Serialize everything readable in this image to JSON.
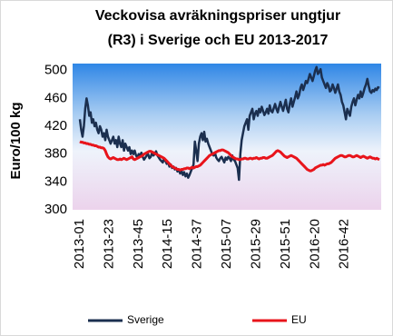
{
  "chart_data": {
    "type": "line",
    "title": [
      "Veckovisa avräkningspriser ungtjur",
      "(R3) i Sverige och EU 2013-2017"
    ],
    "y_label": "Euro/100 kg",
    "ylim": [
      300,
      510
    ],
    "yticks": [
      300,
      340,
      380,
      420,
      460,
      500
    ],
    "grid": false,
    "legend": "bottom",
    "categories": [
      "2013-01",
      null,
      null,
      null,
      null,
      null,
      null,
      null,
      null,
      null,
      null,
      null,
      null,
      null,
      null,
      null,
      null,
      null,
      null,
      null,
      null,
      null,
      "2013-23",
      null,
      null,
      null,
      null,
      null,
      null,
      null,
      null,
      null,
      null,
      null,
      null,
      null,
      null,
      null,
      null,
      null,
      null,
      null,
      null,
      null,
      "2013-45",
      null,
      null,
      null,
      null,
      null,
      null,
      null,
      null,
      null,
      null,
      null,
      null,
      null,
      null,
      null,
      null,
      null,
      null,
      null,
      null,
      null,
      "2014-15",
      null,
      null,
      null,
      null,
      null,
      null,
      null,
      null,
      null,
      null,
      null,
      null,
      null,
      null,
      null,
      null,
      null,
      null,
      null,
      null,
      null,
      "2014-37",
      null,
      null,
      null,
      null,
      null,
      null,
      null,
      null,
      null,
      null,
      null,
      null,
      null,
      null,
      null,
      null,
      null,
      null,
      null,
      null,
      null,
      "2015-07",
      null,
      null,
      null,
      null,
      null,
      null,
      null,
      null,
      null,
      null,
      null,
      null,
      null,
      null,
      null,
      null,
      null,
      null,
      null,
      null,
      null,
      "2015-29",
      null,
      null,
      null,
      null,
      null,
      null,
      null,
      null,
      null,
      null,
      null,
      null,
      null,
      null,
      null,
      null,
      null,
      null,
      null,
      null,
      null,
      "2015-51",
      null,
      null,
      null,
      null,
      null,
      null,
      null,
      null,
      null,
      null,
      null,
      null,
      null,
      null,
      null,
      null,
      null,
      null,
      null,
      null,
      null,
      "2016-20",
      null,
      null,
      null,
      null,
      null,
      null,
      null,
      null,
      null,
      null,
      null,
      null,
      null,
      null,
      null,
      null,
      null,
      null,
      null,
      null,
      null,
      "2016-42",
      null,
      null,
      null,
      null,
      null,
      null,
      null,
      null,
      null,
      null,
      null,
      null,
      null,
      null,
      null,
      null,
      null,
      null,
      null,
      null,
      null,
      null,
      null,
      null,
      null,
      null
    ],
    "series": [
      {
        "name": "Sverige",
        "color": "#1b2f4f",
        "values": [
          430,
          415,
          405,
          420,
          445,
          460,
          450,
          435,
          440,
          425,
          430,
          420,
          425,
          415,
          410,
          420,
          415,
          405,
          410,
          400,
          415,
          405,
          400,
          395,
          400,
          405,
          395,
          400,
          390,
          405,
          395,
          390,
          400,
          385,
          395,
          390,
          385,
          390,
          380,
          385,
          380,
          385,
          378,
          375,
          380,
          378,
          382,
          376,
          372,
          375,
          378,
          380,
          374,
          376,
          382,
          378,
          380,
          384,
          378,
          375,
          372,
          370,
          368,
          374,
          370,
          366,
          368,
          362,
          365,
          360,
          362,
          358,
          360,
          355,
          358,
          352,
          356,
          350,
          354,
          348,
          352,
          346,
          350,
          355,
          360,
          365,
          398,
          385,
          370,
          395,
          405,
          410,
          400,
          412,
          398,
          402,
          395,
          390,
          385,
          380,
          378,
          382,
          375,
          372,
          370,
          374,
          376,
          372,
          368,
          375,
          372,
          376,
          374,
          370,
          378,
          372,
          370,
          365,
          360,
          343,
          380,
          400,
          410,
          420,
          425,
          430,
          415,
          435,
          440,
          445,
          430,
          438,
          442,
          435,
          445,
          440,
          448,
          442,
          436,
          440,
          445,
          438,
          450,
          442,
          440,
          446,
          452,
          445,
          440,
          448,
          455,
          448,
          442,
          450,
          458,
          445,
          440,
          452,
          460,
          448,
          455,
          462,
          470,
          460,
          465,
          475,
          480,
          472,
          478,
          485,
          482,
          488,
          495,
          490,
          485,
          492,
          500,
          505,
          495,
          498,
          502,
          490,
          485,
          480,
          475,
          482,
          478,
          470,
          472,
          480,
          475,
          468,
          474,
          480,
          470,
          465,
          455,
          450,
          440,
          430,
          445,
          440,
          435,
          448,
          455,
          460,
          450,
          458,
          465,
          460,
          470,
          462,
          468,
          475,
          480,
          488,
          478,
          470,
          468,
          472,
          470,
          474,
          472,
          476,
          475
        ]
      },
      {
        "name": "EU",
        "color": "#e8141b",
        "values": [
          398,
          397,
          397,
          396,
          396,
          395,
          395,
          394,
          394,
          393,
          393,
          392,
          392,
          391,
          390,
          390,
          389,
          389,
          388,
          385,
          380,
          376,
          374,
          373,
          374,
          375,
          374,
          373,
          372,
          372,
          373,
          372,
          373,
          374,
          373,
          372,
          373,
          374,
          375,
          376,
          373,
          372,
          373,
          374,
          375,
          376,
          377,
          378,
          380,
          381,
          382,
          383,
          384,
          384,
          383,
          382,
          381,
          380,
          379,
          378,
          377,
          376,
          375,
          374,
          372,
          370,
          368,
          366,
          364,
          362,
          361,
          360,
          359,
          358,
          358,
          357,
          358,
          358,
          359,
          359,
          360,
          360,
          359,
          360,
          361,
          360,
          361,
          362,
          362,
          363,
          364,
          366,
          368,
          370,
          372,
          374,
          376,
          378,
          379,
          380,
          381,
          382,
          383,
          384,
          385,
          385,
          386,
          386,
          385,
          384,
          383,
          382,
          380,
          378,
          376,
          375,
          374,
          373,
          373,
          372,
          372,
          373,
          373,
          374,
          374,
          373,
          373,
          374,
          374,
          373,
          374,
          374,
          375,
          374,
          373,
          374,
          374,
          375,
          375,
          374,
          374,
          375,
          376,
          377,
          378,
          380,
          382,
          384,
          385,
          384,
          383,
          381,
          379,
          377,
          376,
          375,
          376,
          377,
          378,
          377,
          376,
          375,
          374,
          372,
          370,
          368,
          366,
          364,
          362,
          360,
          358,
          357,
          356,
          356,
          357,
          358,
          360,
          361,
          362,
          363,
          364,
          364,
          365,
          364,
          365,
          366,
          366,
          367,
          368,
          370,
          372,
          374,
          375,
          376,
          377,
          378,
          378,
          377,
          376,
          376,
          377,
          378,
          378,
          377,
          376,
          376,
          377,
          378,
          377,
          376,
          375,
          376,
          377,
          376,
          375,
          374,
          375,
          376,
          375,
          374,
          374,
          373,
          374,
          373,
          372
        ]
      }
    ]
  }
}
